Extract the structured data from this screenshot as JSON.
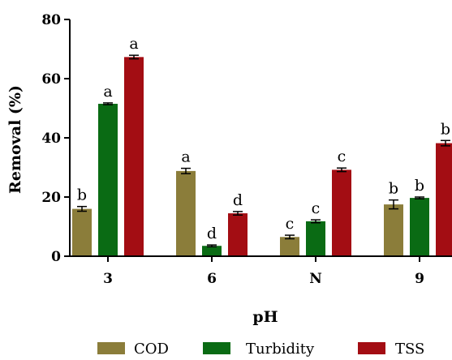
{
  "chart_data": {
    "type": "bar",
    "title": "",
    "xlabel": "pH",
    "ylabel": "Removal (%)",
    "ylim": [
      0,
      80
    ],
    "yticks": [
      0,
      20,
      40,
      60,
      80
    ],
    "categories": [
      "3",
      "6",
      "N",
      "9"
    ],
    "grid": false,
    "legend_position": "bottom",
    "series": [
      {
        "name": "COD",
        "color": "#8B7D3A",
        "values": [
          16,
          28.8,
          6.5,
          17.5
        ],
        "errors": [
          0.8,
          0.9,
          0.6,
          1.5
        ],
        "labels": [
          "b",
          "a",
          "c",
          "b"
        ]
      },
      {
        "name": "Turbidity",
        "color": "#0A6B14",
        "values": [
          51.5,
          3.5,
          11.8,
          19.7
        ],
        "errors": [
          0.3,
          0.3,
          0.5,
          0.3
        ],
        "labels": [
          "a",
          "d",
          "c",
          "b"
        ]
      },
      {
        "name": "TSS",
        "color": "#A30D13",
        "values": [
          67.3,
          14.5,
          29.2,
          38.2
        ],
        "errors": [
          0.6,
          0.6,
          0.6,
          0.9
        ],
        "labels": [
          "a",
          "d",
          "c",
          "b"
        ]
      }
    ]
  }
}
